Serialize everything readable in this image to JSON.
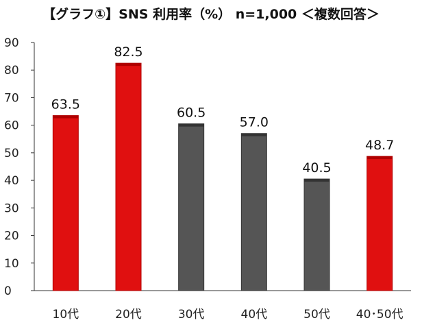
{
  "chart_data": {
    "type": "bar",
    "title": "【グラフ①】SNS 利用率（%） n=1,000 ＜複数回答＞",
    "categories": [
      "10代",
      "20代",
      "30代",
      "40代",
      "50代",
      "40･50代"
    ],
    "values": [
      63.5,
      82.5,
      60.5,
      57.0,
      40.5,
      48.7
    ],
    "value_labels": [
      "63.5",
      "82.5",
      "60.5",
      "57.0",
      "40.5",
      "48.7"
    ],
    "bar_colors": [
      "#e01010",
      "#e01010",
      "#555555",
      "#555555",
      "#555555",
      "#e01010"
    ],
    "ylim": [
      0,
      90
    ],
    "yticks": [
      0,
      10,
      20,
      30,
      40,
      50,
      60,
      70,
      80,
      90
    ],
    "xlabel": "",
    "ylabel": "",
    "grid": false,
    "legend": "none"
  }
}
